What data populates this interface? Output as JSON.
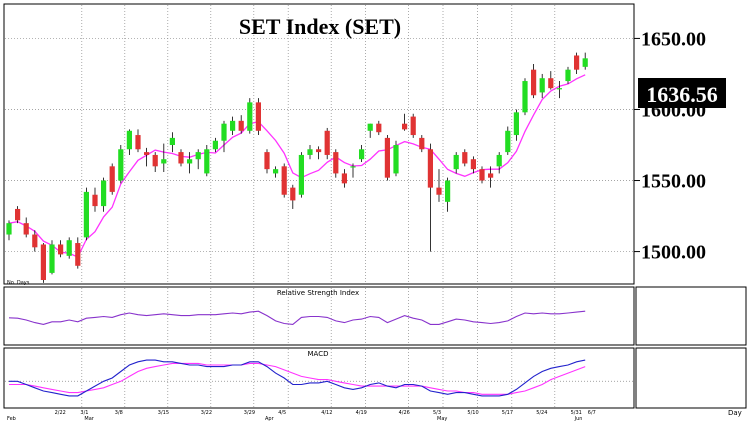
{
  "title": "SET  Index  (SET)",
  "last_price_label": "1636.56",
  "price_axis_ticks": [
    "1650.00",
    "1600.00",
    "1550.00",
    "1500.00"
  ],
  "price_axis_values": [
    1650,
    1600,
    1550,
    1500
  ],
  "no_days_label": "No. Days",
  "rsi_label": "Relative Strength Index",
  "macd_label": "MACD",
  "x_axis_unit_label": "Day",
  "month_labels": [
    "Feb",
    "Mar",
    "Apr",
    "May",
    "Jun"
  ],
  "date_tick_labels": [
    "2/22",
    "3/1",
    "3/8",
    "3/15",
    "3/22",
    "3/29",
    "4/5",
    "4/12",
    "4/19",
    "4/26",
    "5/3",
    "5/10",
    "5/17",
    "5/24",
    "5/31",
    "6/7"
  ],
  "colors": {
    "up": "#22dd22",
    "down": "#e03333",
    "ma": "#ff33ff",
    "rsi": "#8833cc",
    "macd": "#2222cc",
    "signal": "#ff33ff",
    "grid": "#888888"
  },
  "chart_data": [
    {
      "type": "candlestick",
      "title": "SET  Index  (SET)",
      "ylim": [
        1480,
        1670
      ],
      "ma_period": 5,
      "grid": true,
      "ohlc": [
        [
          1512,
          1522,
          1508,
          1520
        ],
        [
          1530,
          1532,
          1520,
          1522
        ],
        [
          1520,
          1524,
          1510,
          1512
        ],
        [
          1512,
          1515,
          1500,
          1503
        ],
        [
          1505,
          1506,
          1478,
          1480
        ],
        [
          1485,
          1508,
          1484,
          1505
        ],
        [
          1505,
          1508,
          1496,
          1498
        ],
        [
          1497,
          1510,
          1495,
          1508
        ],
        [
          1506,
          1510,
          1488,
          1490
        ],
        [
          1510,
          1545,
          1508,
          1542
        ],
        [
          1540,
          1545,
          1528,
          1532
        ],
        [
          1532,
          1552,
          1528,
          1550
        ],
        [
          1560,
          1562,
          1540,
          1542
        ],
        [
          1550,
          1575,
          1548,
          1572
        ],
        [
          1572,
          1586,
          1568,
          1585
        ],
        [
          1582,
          1586,
          1570,
          1572
        ],
        [
          1570,
          1573,
          1560,
          1568
        ],
        [
          1568,
          1570,
          1556,
          1560
        ],
        [
          1562,
          1576,
          1556,
          1565
        ],
        [
          1575,
          1584,
          1570,
          1580
        ],
        [
          1570,
          1572,
          1560,
          1562
        ],
        [
          1562,
          1570,
          1555,
          1565
        ],
        [
          1565,
          1572,
          1558,
          1570
        ],
        [
          1555,
          1575,
          1553,
          1572
        ],
        [
          1572,
          1580,
          1570,
          1578
        ],
        [
          1578,
          1592,
          1570,
          1590
        ],
        [
          1585,
          1595,
          1582,
          1592
        ],
        [
          1592,
          1596,
          1583,
          1585
        ],
        [
          1585,
          1608,
          1583,
          1605
        ],
        [
          1605,
          1608,
          1582,
          1585
        ],
        [
          1570,
          1572,
          1555,
          1558
        ],
        [
          1555,
          1560,
          1552,
          1558
        ],
        [
          1560,
          1562,
          1538,
          1540
        ],
        [
          1545,
          1547,
          1530,
          1536
        ],
        [
          1540,
          1570,
          1538,
          1568
        ],
        [
          1568,
          1575,
          1565,
          1572
        ],
        [
          1572,
          1574,
          1565,
          1570
        ],
        [
          1585,
          1587,
          1565,
          1568
        ],
        [
          1570,
          1572,
          1552,
          1555
        ],
        [
          1555,
          1558,
          1545,
          1548
        ],
        [
          1560,
          1562,
          1552,
          1560
        ],
        [
          1565,
          1575,
          1563,
          1572
        ],
        [
          1585,
          1590,
          1580,
          1590
        ],
        [
          1590,
          1592,
          1582,
          1584
        ],
        [
          1580,
          1582,
          1550,
          1552
        ],
        [
          1555,
          1578,
          1553,
          1575
        ],
        [
          1590,
          1597,
          1585,
          1586
        ],
        [
          1595,
          1597,
          1580,
          1582
        ],
        [
          1580,
          1582,
          1570,
          1572
        ],
        [
          1572,
          1576,
          1500,
          1545
        ],
        [
          1545,
          1558,
          1535,
          1540
        ],
        [
          1535,
          1552,
          1528,
          1550
        ],
        [
          1558,
          1570,
          1555,
          1568
        ],
        [
          1570,
          1572,
          1560,
          1562
        ],
        [
          1565,
          1567,
          1555,
          1558
        ],
        [
          1558,
          1560,
          1548,
          1550
        ],
        [
          1555,
          1560,
          1545,
          1552
        ],
        [
          1560,
          1570,
          1555,
          1568
        ],
        [
          1570,
          1588,
          1568,
          1585
        ],
        [
          1582,
          1600,
          1578,
          1598
        ],
        [
          1598,
          1622,
          1596,
          1620
        ],
        [
          1628,
          1632,
          1608,
          1610
        ],
        [
          1612,
          1625,
          1608,
          1622
        ],
        [
          1622,
          1627,
          1614,
          1615
        ],
        [
          1615,
          1620,
          1608,
          1615
        ],
        [
          1620,
          1630,
          1618,
          1628
        ],
        [
          1638,
          1640,
          1625,
          1628
        ],
        [
          1630,
          1640,
          1628,
          1636
        ]
      ]
    },
    {
      "type": "line",
      "title": "Relative Strength Index",
      "values": [
        55,
        54,
        50,
        44,
        40,
        46,
        46,
        50,
        46,
        54,
        56,
        58,
        56,
        62,
        66,
        62,
        60,
        62,
        64,
        62,
        60,
        60,
        62,
        62,
        62,
        64,
        66,
        64,
        68,
        70,
        60,
        48,
        42,
        40,
        56,
        58,
        58,
        56,
        48,
        44,
        50,
        52,
        58,
        56,
        44,
        52,
        60,
        54,
        50,
        40,
        40,
        46,
        52,
        50,
        46,
        44,
        42,
        44,
        48,
        58,
        66,
        64,
        66,
        64,
        64,
        66,
        68,
        70
      ],
      "ylim": [
        0,
        100
      ]
    },
    {
      "type": "line",
      "title": "MACD",
      "series_values": [
        [
          0,
          0,
          -2,
          -4,
          -6,
          -7,
          -8,
          -9,
          -9,
          -6,
          -3,
          0,
          2,
          6,
          10,
          12,
          13,
          13,
          12,
          12,
          11,
          10,
          10,
          9,
          9,
          9,
          10,
          10,
          12,
          12,
          9,
          5,
          2,
          -2,
          -2,
          -1,
          -1,
          0,
          -2,
          -4,
          -5,
          -4,
          -2,
          -1,
          -3,
          -4,
          -2,
          -2,
          -3,
          -6,
          -7,
          -8,
          -7,
          -7,
          -8,
          -9,
          -9,
          -9,
          -8,
          -5,
          -1,
          3,
          6,
          8,
          9,
          10,
          12,
          13
        ],
        [
          -2,
          -2,
          -2,
          -3,
          -4,
          -5,
          -6,
          -7,
          -7,
          -6,
          -5,
          -4,
          -2,
          0,
          3,
          6,
          8,
          9,
          10,
          11,
          11,
          11,
          11,
          10,
          10,
          10,
          10,
          10,
          11,
          11,
          10,
          9,
          7,
          5,
          3,
          2,
          1,
          1,
          0,
          -1,
          -2,
          -3,
          -3,
          -3,
          -3,
          -3,
          -3,
          -3,
          -3,
          -4,
          -5,
          -6,
          -6,
          -7,
          -7,
          -8,
          -8,
          -8,
          -8,
          -7,
          -6,
          -4,
          -2,
          1,
          3,
          5,
          7,
          9
        ]
      ],
      "ylim": [
        -14,
        18
      ]
    }
  ]
}
